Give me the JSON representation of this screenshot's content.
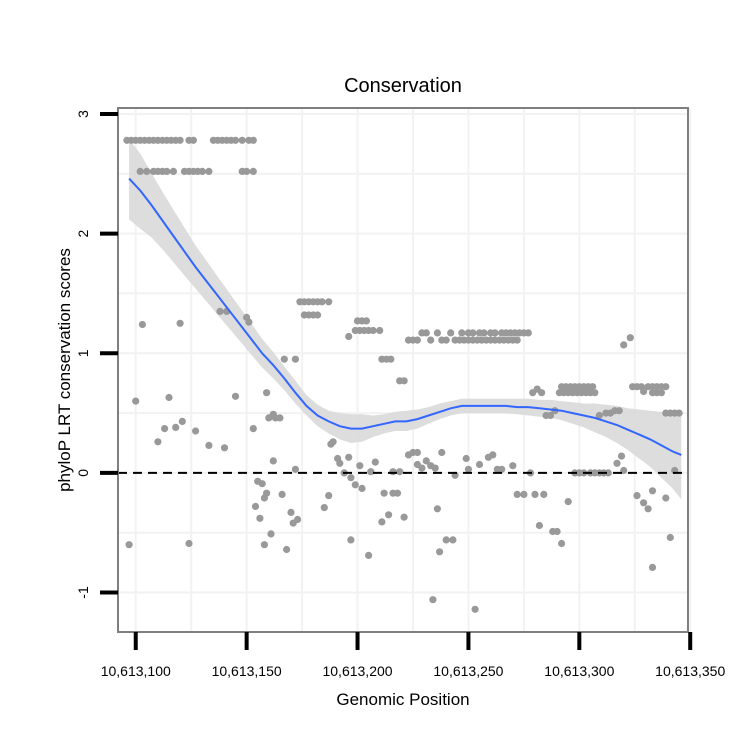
{
  "chart_data": {
    "type": "scatter",
    "title": "Conservation",
    "xlabel": "Genomic Position",
    "ylabel": "phyloP LRT conservation scores",
    "xlim": [
      10613092,
      10613349
    ],
    "ylim": [
      -1.33,
      3.05
    ],
    "x_ticks": [
      {
        "value": 10613100,
        "label": "10,613,100"
      },
      {
        "value": 10613150,
        "label": "10,613,150"
      },
      {
        "value": 10613200,
        "label": "10,613,200"
      },
      {
        "value": 10613250,
        "label": "10,613,250"
      },
      {
        "value": 10613300,
        "label": "10,613,300"
      },
      {
        "value": 10613350,
        "label": "10,613,350"
      }
    ],
    "y_ticks": [
      {
        "value": -1,
        "label": "-1"
      },
      {
        "value": 0,
        "label": "0"
      },
      {
        "value": 1,
        "label": "1"
      },
      {
        "value": 2,
        "label": "2"
      },
      {
        "value": 3,
        "label": "3"
      }
    ],
    "x_minor_ticks": [
      10613125,
      10613175,
      10613225,
      10613275,
      10613325
    ],
    "y_minor_ticks": [
      -0.5,
      0.5,
      1.5,
      2.5
    ],
    "reference_line": {
      "y": 0,
      "style": "dashed"
    },
    "grid": true,
    "colors": {
      "points": "#999999",
      "smooth_line": "#3366FF",
      "confidence_band": "#D9D9D9",
      "panel_border": "#7F7F7F",
      "grid": "#F2F2F2"
    },
    "points": [
      [
        10613096,
        2.78
      ],
      [
        10613098,
        2.78
      ],
      [
        10613100,
        2.78
      ],
      [
        10613102,
        2.78
      ],
      [
        10613104,
        2.78
      ],
      [
        10613106,
        2.78
      ],
      [
        10613108,
        2.78
      ],
      [
        10613110,
        2.78
      ],
      [
        10613112,
        2.78
      ],
      [
        10613114,
        2.78
      ],
      [
        10613116,
        2.78
      ],
      [
        10613118,
        2.78
      ],
      [
        10613120,
        2.78
      ],
      [
        10613124,
        2.78
      ],
      [
        10613126,
        2.78
      ],
      [
        10613135,
        2.78
      ],
      [
        10613137,
        2.78
      ],
      [
        10613139,
        2.78
      ],
      [
        10613141,
        2.78
      ],
      [
        10613143,
        2.78
      ],
      [
        10613145,
        2.78
      ],
      [
        10613148,
        2.78
      ],
      [
        10613151,
        2.78
      ],
      [
        10613153,
        2.78
      ],
      [
        10613102,
        2.52
      ],
      [
        10613105,
        2.52
      ],
      [
        10613108,
        2.52
      ],
      [
        10613110,
        2.52
      ],
      [
        10613112,
        2.52
      ],
      [
        10613114,
        2.52
      ],
      [
        10613117,
        2.52
      ],
      [
        10613122,
        2.52
      ],
      [
        10613124,
        2.52
      ],
      [
        10613126,
        2.52
      ],
      [
        10613128,
        2.52
      ],
      [
        10613130,
        2.52
      ],
      [
        10613133,
        2.52
      ],
      [
        10613148,
        2.52
      ],
      [
        10613150,
        2.52
      ],
      [
        10613153,
        2.52
      ],
      [
        10613103,
        1.24
      ],
      [
        10613120,
        1.25
      ],
      [
        10613138,
        1.35
      ],
      [
        10613141,
        1.35
      ],
      [
        10613150,
        1.3
      ],
      [
        10613151,
        1.26
      ],
      [
        10613100,
        0.6
      ],
      [
        10613097,
        -0.6
      ],
      [
        10613145,
        0.64
      ],
      [
        10613115,
        0.63
      ],
      [
        10613110,
        0.26
      ],
      [
        10613113,
        0.37
      ],
      [
        10613118,
        0.38
      ],
      [
        10613121,
        0.43
      ],
      [
        10613127,
        0.35
      ],
      [
        10613133,
        0.23
      ],
      [
        10613140,
        0.21
      ],
      [
        10613124,
        -0.59
      ],
      [
        10613153,
        0.37
      ],
      [
        10613159,
        0.67
      ],
      [
        10613160,
        0.46
      ],
      [
        10613162,
        0.49
      ],
      [
        10613163,
        0.46
      ],
      [
        10613165,
        0.46
      ],
      [
        10613167,
        0.95
      ],
      [
        10613172,
        0.95
      ],
      [
        10613174,
        1.43
      ],
      [
        10613176,
        1.43
      ],
      [
        10613178,
        1.43
      ],
      [
        10613180,
        1.43
      ],
      [
        10613182,
        1.43
      ],
      [
        10613184,
        1.43
      ],
      [
        10613187,
        1.43
      ],
      [
        10613176,
        1.32
      ],
      [
        10613178,
        1.32
      ],
      [
        10613180,
        1.32
      ],
      [
        10613182,
        1.32
      ],
      [
        10613154,
        -0.28
      ],
      [
        10613155,
        -0.07
      ],
      [
        10613157,
        -0.09
      ],
      [
        10613158,
        -0.21
      ],
      [
        10613156,
        -0.38
      ],
      [
        10613159,
        -0.17
      ],
      [
        10613161,
        -0.51
      ],
      [
        10613158,
        -0.6
      ],
      [
        10613162,
        0.1
      ],
      [
        10613166,
        -0.18
      ],
      [
        10613168,
        -0.64
      ],
      [
        10613170,
        -0.33
      ],
      [
        10613171,
        -0.42
      ],
      [
        10613172,
        0.03
      ],
      [
        10613173,
        -0.39
      ],
      [
        10613188,
        0.24
      ],
      [
        10613189,
        0.26
      ],
      [
        10613191,
        0.12
      ],
      [
        10613187,
        -0.19
      ],
      [
        10613185,
        -0.29
      ],
      [
        10613196,
        1.14
      ],
      [
        10613200,
        1.27
      ],
      [
        10613202,
        1.27
      ],
      [
        10613204,
        1.27
      ],
      [
        10613199,
        1.19
      ],
      [
        10613201,
        1.19
      ],
      [
        10613203,
        1.19
      ],
      [
        10613205,
        1.19
      ],
      [
        10613207,
        1.19
      ],
      [
        10613210,
        1.19
      ],
      [
        10613211,
        0.95
      ],
      [
        10613213,
        0.95
      ],
      [
        10613215,
        0.95
      ],
      [
        10613219,
        0.77
      ],
      [
        10613221,
        0.77
      ],
      [
        10613223,
        1.11
      ],
      [
        10613225,
        1.11
      ],
      [
        10613227,
        1.11
      ],
      [
        10613229,
        1.17
      ],
      [
        10613231,
        1.17
      ],
      [
        10613233,
        1.11
      ],
      [
        10613236,
        1.17
      ],
      [
        10613238,
        1.11
      ],
      [
        10613240,
        1.11
      ],
      [
        10613242,
        1.17
      ],
      [
        10613244,
        1.11
      ],
      [
        10613246,
        1.11
      ],
      [
        10613248,
        1.11
      ],
      [
        10613250,
        1.11
      ],
      [
        10613252,
        1.11
      ],
      [
        10613254,
        1.11
      ],
      [
        10613256,
        1.11
      ],
      [
        10613258,
        1.11
      ],
      [
        10613260,
        1.11
      ],
      [
        10613262,
        1.11
      ],
      [
        10613264,
        1.11
      ],
      [
        10613266,
        1.11
      ],
      [
        10613268,
        1.11
      ],
      [
        10613270,
        1.11
      ],
      [
        10613272,
        1.11
      ],
      [
        10613247,
        1.17
      ],
      [
        10613250,
        1.17
      ],
      [
        10613252,
        1.17
      ],
      [
        10613255,
        1.17
      ],
      [
        10613257,
        1.17
      ],
      [
        10613260,
        1.17
      ],
      [
        10613262,
        1.17
      ],
      [
        10613265,
        1.17
      ],
      [
        10613267,
        1.17
      ],
      [
        10613269,
        1.17
      ],
      [
        10613271,
        1.17
      ],
      [
        10613273,
        1.17
      ],
      [
        10613275,
        1.17
      ],
      [
        10613277,
        1.17
      ],
      [
        10613192,
        0.08
      ],
      [
        10613194,
        0.0
      ],
      [
        10613196,
        0.13
      ],
      [
        10613197,
        -0.04
      ],
      [
        10613199,
        -0.1
      ],
      [
        10613197,
        -0.56
      ],
      [
        10613201,
        0.06
      ],
      [
        10613202,
        -0.13
      ],
      [
        10613206,
        0.01
      ],
      [
        10613208,
        0.09
      ],
      [
        10613205,
        -0.69
      ],
      [
        10613211,
        -0.41
      ],
      [
        10613212,
        -0.17
      ],
      [
        10613214,
        -0.35
      ],
      [
        10613216,
        -0.17
      ],
      [
        10613216,
        0.01
      ],
      [
        10613218,
        -0.17
      ],
      [
        10613219,
        0.01
      ],
      [
        10613221,
        -0.37
      ],
      [
        10613223,
        0.15
      ],
      [
        10613225,
        0.17
      ],
      [
        10613227,
        0.17
      ],
      [
        10613227,
        0.07
      ],
      [
        10613229,
        0.04
      ],
      [
        10613231,
        0.1
      ],
      [
        10613233,
        0.06
      ],
      [
        10613235,
        0.04
      ],
      [
        10613236,
        -0.3
      ],
      [
        10613237,
        -0.66
      ],
      [
        10613240,
        -0.56
      ],
      [
        10613243,
        -0.56
      ],
      [
        10613244,
        -0.02
      ],
      [
        10613238,
        0.17
      ],
      [
        10613234,
        -1.06
      ],
      [
        10613249,
        0.12
      ],
      [
        10613250,
        0.03
      ],
      [
        10613253,
        -1.14
      ],
      [
        10613255,
        0.07
      ],
      [
        10613259,
        0.13
      ],
      [
        10613261,
        0.15
      ],
      [
        10613263,
        0.03
      ],
      [
        10613265,
        0.03
      ],
      [
        10613279,
        0.67
      ],
      [
        10613281,
        0.7
      ],
      [
        10613283,
        0.67
      ],
      [
        10613285,
        0.48
      ],
      [
        10613287,
        0.48
      ],
      [
        10613289,
        0.52
      ],
      [
        10613291,
        0.67
      ],
      [
        10613293,
        0.67
      ],
      [
        10613295,
        0.67
      ],
      [
        10613297,
        0.67
      ],
      [
        10613299,
        0.67
      ],
      [
        10613301,
        0.67
      ],
      [
        10613303,
        0.67
      ],
      [
        10613305,
        0.67
      ],
      [
        10613307,
        0.67
      ],
      [
        10613292,
        0.72
      ],
      [
        10613294,
        0.72
      ],
      [
        10613296,
        0.72
      ],
      [
        10613298,
        0.72
      ],
      [
        10613300,
        0.72
      ],
      [
        10613302,
        0.72
      ],
      [
        10613304,
        0.72
      ],
      [
        10613306,
        0.72
      ],
      [
        10613309,
        0.48
      ],
      [
        10613312,
        0.5
      ],
      [
        10613314,
        0.5
      ],
      [
        10613316,
        0.52
      ],
      [
        10613318,
        0.52
      ],
      [
        10613270,
        0.06
      ],
      [
        10613272,
        -0.18
      ],
      [
        10613275,
        -0.18
      ],
      [
        10613278,
        0.0
      ],
      [
        10613280,
        -0.18
      ],
      [
        10613282,
        -0.44
      ],
      [
        10613284,
        -0.18
      ],
      [
        10613288,
        -0.49
      ],
      [
        10613290,
        -0.49
      ],
      [
        10613292,
        -0.59
      ],
      [
        10613295,
        -0.24
      ],
      [
        10613298,
        0.0
      ],
      [
        10613300,
        0.0
      ],
      [
        10613302,
        0.0
      ],
      [
        10613305,
        0.0
      ],
      [
        10613307,
        0.0
      ],
      [
        10613309,
        0.0
      ],
      [
        10613311,
        0.0
      ],
      [
        10613313,
        0.0
      ],
      [
        10613317,
        0.08
      ],
      [
        10613319,
        0.14
      ],
      [
        10613320,
        0.02
      ],
      [
        10613320,
        1.07
      ],
      [
        10613323,
        1.13
      ],
      [
        10613324,
        0.72
      ],
      [
        10613326,
        0.72
      ],
      [
        10613328,
        0.72
      ],
      [
        10613329,
        0.68
      ],
      [
        10613331,
        0.72
      ],
      [
        10613333,
        0.72
      ],
      [
        10613335,
        0.72
      ],
      [
        10613337,
        0.72
      ],
      [
        10613339,
        0.72
      ],
      [
        10613333,
        0.67
      ],
      [
        10613335,
        0.67
      ],
      [
        10613337,
        0.67
      ],
      [
        10613339,
        0.5
      ],
      [
        10613341,
        0.5
      ],
      [
        10613343,
        0.5
      ],
      [
        10613345,
        0.5
      ],
      [
        10613326,
        -0.19
      ],
      [
        10613329,
        -0.25
      ],
      [
        10613331,
        -0.3
      ],
      [
        10613333,
        -0.15
      ],
      [
        10613333,
        -0.79
      ],
      [
        10613339,
        -0.21
      ],
      [
        10613341,
        -0.54
      ],
      [
        10613343,
        0.02
      ]
    ],
    "smooth": {
      "x": [
        10613097,
        10613102,
        10613107,
        10613112,
        10613117,
        10613122,
        10613127,
        10613132,
        10613137,
        10613142,
        10613147,
        10613152,
        10613157,
        10613162,
        10613167,
        10613172,
        10613177,
        10613182,
        10613187,
        10613192,
        10613197,
        10613202,
        10613207,
        10613212,
        10613217,
        10613222,
        10613227,
        10613232,
        10613237,
        10613242,
        10613247,
        10613252,
        10613257,
        10613262,
        10613267,
        10613272,
        10613277,
        10613282,
        10613287,
        10613292,
        10613297,
        10613302,
        10613307,
        10613312,
        10613317,
        10613322,
        10613327,
        10613332,
        10613337,
        10613342,
        10613346
      ],
      "y": [
        2.46,
        2.36,
        2.24,
        2.11,
        1.98,
        1.85,
        1.72,
        1.6,
        1.48,
        1.36,
        1.24,
        1.12,
        1.0,
        0.9,
        0.79,
        0.67,
        0.56,
        0.48,
        0.43,
        0.39,
        0.37,
        0.37,
        0.39,
        0.41,
        0.43,
        0.43,
        0.45,
        0.48,
        0.51,
        0.54,
        0.56,
        0.56,
        0.56,
        0.56,
        0.56,
        0.55,
        0.55,
        0.54,
        0.53,
        0.52,
        0.5,
        0.48,
        0.46,
        0.43,
        0.4,
        0.36,
        0.32,
        0.28,
        0.23,
        0.18,
        0.15
      ],
      "lower": [
        2.12,
        2.04,
        1.97,
        1.87,
        1.76,
        1.65,
        1.54,
        1.43,
        1.32,
        1.21,
        1.1,
        0.99,
        0.88,
        0.79,
        0.69,
        0.58,
        0.48,
        0.39,
        0.33,
        0.28,
        0.25,
        0.26,
        0.3,
        0.33,
        0.35,
        0.35,
        0.37,
        0.41,
        0.45,
        0.48,
        0.5,
        0.5,
        0.5,
        0.5,
        0.5,
        0.49,
        0.48,
        0.47,
        0.46,
        0.44,
        0.41,
        0.38,
        0.34,
        0.3,
        0.25,
        0.19,
        0.12,
        0.05,
        -0.04,
        -0.13,
        -0.22
      ],
      "upper": [
        2.79,
        2.67,
        2.51,
        2.35,
        2.2,
        2.05,
        1.9,
        1.77,
        1.64,
        1.51,
        1.38,
        1.25,
        1.12,
        1.01,
        0.89,
        0.77,
        0.65,
        0.57,
        0.52,
        0.5,
        0.49,
        0.49,
        0.48,
        0.49,
        0.51,
        0.52,
        0.53,
        0.55,
        0.58,
        0.6,
        0.62,
        0.62,
        0.62,
        0.62,
        0.62,
        0.62,
        0.62,
        0.61,
        0.61,
        0.6,
        0.59,
        0.58,
        0.58,
        0.57,
        0.56,
        0.54,
        0.53,
        0.52,
        0.51,
        0.5,
        0.5
      ]
    }
  }
}
